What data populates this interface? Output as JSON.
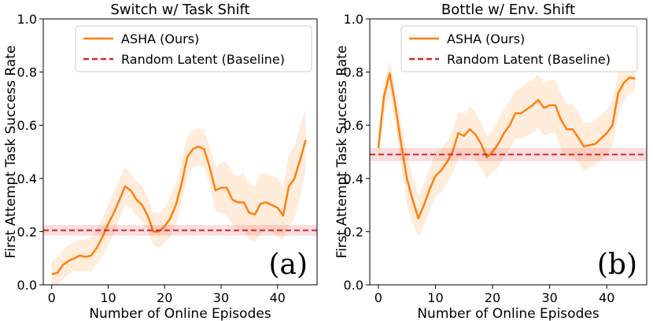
{
  "chart_data": [
    {
      "type": "line",
      "title": "Switch w/ Task Shift",
      "xlabel": "Number of Online Episodes",
      "ylabel": "First Attempt Task Success Rate",
      "panel_label": "(a)",
      "xlim": [
        -1.5,
        47
      ],
      "ylim": [
        0.0,
        1.0
      ],
      "xticks": [
        0,
        10,
        20,
        30,
        40
      ],
      "yticks": [
        0.0,
        0.2,
        0.4,
        0.6,
        0.8,
        1.0
      ],
      "legend_position": "top-left",
      "series": [
        {
          "name": "ASHA (Ours)",
          "color": "#ff7f0e",
          "style": "solid",
          "x": [
            0,
            1,
            2,
            3,
            4,
            5,
            6,
            7,
            8,
            9,
            10,
            11,
            12,
            13,
            14,
            15,
            16,
            17,
            18,
            19,
            20,
            21,
            22,
            23,
            24,
            25,
            26,
            27,
            28,
            29,
            30,
            31,
            32,
            33,
            34,
            35,
            36,
            37,
            38,
            39,
            40,
            41,
            42,
            43,
            44,
            45
          ],
          "y": [
            0.04,
            0.045,
            0.075,
            0.09,
            0.1,
            0.11,
            0.105,
            0.11,
            0.14,
            0.18,
            0.23,
            0.27,
            0.32,
            0.37,
            0.355,
            0.32,
            0.3,
            0.26,
            0.2,
            0.2,
            0.22,
            0.25,
            0.3,
            0.38,
            0.48,
            0.51,
            0.52,
            0.51,
            0.44,
            0.355,
            0.365,
            0.365,
            0.32,
            0.31,
            0.31,
            0.27,
            0.265,
            0.305,
            0.31,
            0.3,
            0.29,
            0.26,
            0.37,
            0.4,
            0.47,
            0.545
          ],
          "lower": [
            0.0,
            0.0,
            0.02,
            0.04,
            0.05,
            0.05,
            0.05,
            0.05,
            0.08,
            0.11,
            0.15,
            0.19,
            0.25,
            0.3,
            0.29,
            0.26,
            0.24,
            0.2,
            0.15,
            0.14,
            0.16,
            0.18,
            0.23,
            0.3,
            0.4,
            0.44,
            0.45,
            0.44,
            0.37,
            0.28,
            0.27,
            0.26,
            0.23,
            0.21,
            0.2,
            0.17,
            0.16,
            0.19,
            0.21,
            0.2,
            0.18,
            0.17,
            0.22,
            0.25,
            0.33,
            0.43
          ],
          "upper": [
            0.09,
            0.1,
            0.13,
            0.15,
            0.16,
            0.17,
            0.17,
            0.18,
            0.21,
            0.25,
            0.3,
            0.35,
            0.4,
            0.44,
            0.42,
            0.39,
            0.37,
            0.33,
            0.27,
            0.27,
            0.29,
            0.33,
            0.38,
            0.46,
            0.56,
            0.58,
            0.59,
            0.58,
            0.52,
            0.44,
            0.46,
            0.46,
            0.42,
            0.41,
            0.42,
            0.38,
            0.37,
            0.42,
            0.42,
            0.41,
            0.4,
            0.37,
            0.49,
            0.52,
            0.6,
            0.66
          ]
        },
        {
          "name": "Random Latent (Baseline)",
          "color": "#d62728",
          "style": "dashed",
          "constant": 0.205,
          "lower": 0.185,
          "upper": 0.225
        }
      ]
    },
    {
      "type": "line",
      "title": "Bottle w/ Env. Shift",
      "xlabel": "Number of Online Episodes",
      "ylabel": "First Attempt Task Success Rate",
      "panel_label": "(b)",
      "xlim": [
        -1.5,
        47
      ],
      "ylim": [
        0.0,
        1.0
      ],
      "xticks": [
        0,
        10,
        20,
        30,
        40
      ],
      "yticks": [
        0.0,
        0.2,
        0.4,
        0.6,
        0.8,
        1.0
      ],
      "legend_position": "top-right",
      "series": [
        {
          "name": "ASHA (Ours)",
          "color": "#ff7f0e",
          "style": "solid",
          "x": [
            0,
            1,
            2,
            3,
            4,
            5,
            6,
            7,
            8,
            9,
            10,
            11,
            12,
            13,
            14,
            15,
            16,
            17,
            18,
            19,
            20,
            21,
            22,
            23,
            24,
            25,
            26,
            27,
            28,
            29,
            30,
            31,
            32,
            33,
            34,
            35,
            36,
            37,
            38,
            39,
            40,
            41,
            42,
            43,
            44,
            45
          ],
          "y": [
            0.515,
            0.71,
            0.795,
            0.67,
            0.53,
            0.4,
            0.32,
            0.25,
            0.3,
            0.36,
            0.41,
            0.43,
            0.46,
            0.5,
            0.57,
            0.56,
            0.585,
            0.565,
            0.53,
            0.48,
            0.5,
            0.53,
            0.57,
            0.6,
            0.645,
            0.645,
            0.66,
            0.675,
            0.695,
            0.665,
            0.675,
            0.675,
            0.62,
            0.585,
            0.585,
            0.555,
            0.52,
            0.525,
            0.53,
            0.55,
            0.57,
            0.6,
            0.72,
            0.76,
            0.78,
            0.775
          ],
          "lower": [
            0.48,
            0.64,
            0.72,
            0.6,
            0.45,
            0.3,
            0.23,
            0.18,
            0.22,
            0.28,
            0.33,
            0.35,
            0.38,
            0.42,
            0.48,
            0.47,
            0.49,
            0.47,
            0.44,
            0.4,
            0.42,
            0.44,
            0.48,
            0.51,
            0.55,
            0.55,
            0.56,
            0.57,
            0.59,
            0.56,
            0.57,
            0.57,
            0.51,
            0.48,
            0.48,
            0.46,
            0.43,
            0.44,
            0.45,
            0.47,
            0.49,
            0.52,
            0.64,
            0.69,
            0.72,
            0.73
          ],
          "upper": [
            0.55,
            0.76,
            0.84,
            0.74,
            0.61,
            0.49,
            0.41,
            0.33,
            0.38,
            0.44,
            0.49,
            0.51,
            0.54,
            0.58,
            0.65,
            0.64,
            0.67,
            0.65,
            0.61,
            0.56,
            0.58,
            0.62,
            0.66,
            0.69,
            0.73,
            0.74,
            0.76,
            0.77,
            0.79,
            0.76,
            0.77,
            0.77,
            0.72,
            0.68,
            0.68,
            0.65,
            0.61,
            0.61,
            0.62,
            0.64,
            0.66,
            0.69,
            0.8,
            0.83,
            0.84,
            0.82
          ]
        },
        {
          "name": "Random Latent (Baseline)",
          "color": "#d62728",
          "style": "dashed",
          "constant": 0.49,
          "lower": 0.465,
          "upper": 0.515
        }
      ]
    }
  ]
}
